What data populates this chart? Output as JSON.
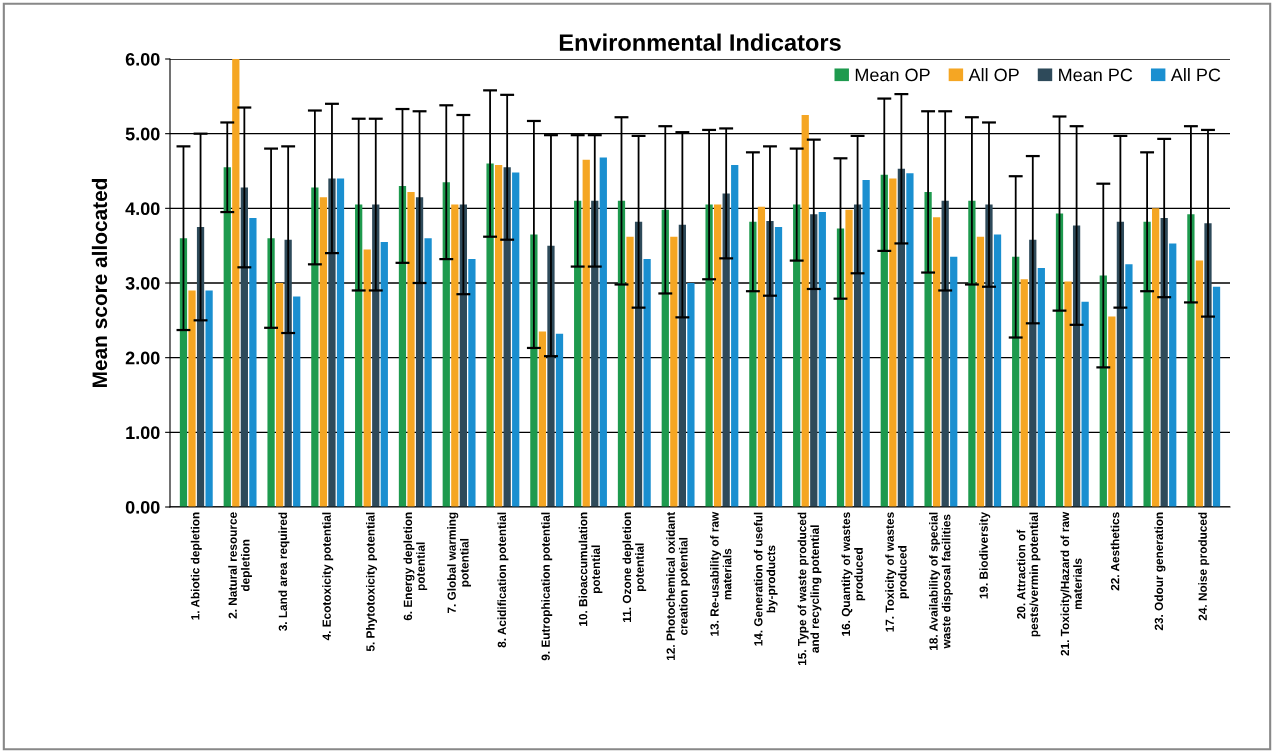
{
  "chart_data": {
    "type": "bar",
    "title": "Environmental Indicators",
    "ylabel": "Mean score allocated",
    "categories": [
      "1. Abiotic depletion",
      "2. Natural resource\ndepletion",
      "3. Land area required",
      "4. Ecotoxicity potential",
      "5. Phytotoxicity potential",
      "6. Energy depletion\npotential",
      "7. Global warming\npotential",
      "8. Acidification potential",
      "9. Eutrophication potential",
      "10. Bioaccumulation\npotential",
      "11. Ozone depletion\npotential",
      "12. Photochemical oxidant\ncreation potential",
      "13. Re-usability of raw\nmaterials",
      "14. Generation of useful\nby-products",
      "15. Type of waste produced\nand recycling potential",
      "16. Quantity of wastes\nproduced",
      "17. Toxicity of wastes\nproduced",
      "18. Availability of special\nwaste disposal facilities",
      "19. Biodiversity",
      "20. Attraction of\npests/vermin potential",
      "21. Toxicity/Hazard of raw\nmaterials",
      "22. Aesthetics",
      "23. Odour generation",
      "24. Noise produced"
    ],
    "series": [
      {
        "name": "Mean OP",
        "color": "#1e9a4e",
        "values": [
          3.6,
          4.55,
          3.6,
          4.28,
          4.05,
          4.3,
          4.35,
          4.6,
          3.65,
          4.1,
          4.1,
          3.98,
          4.05,
          3.82,
          4.05,
          3.73,
          4.45,
          4.22,
          4.1,
          3.35,
          3.93,
          3.1,
          3.82,
          3.92
        ],
        "errors": [
          1.23,
          0.6,
          1.2,
          1.03,
          1.15,
          1.03,
          1.03,
          0.98,
          1.52,
          0.88,
          1.12,
          1.12,
          1.0,
          0.93,
          0.75,
          0.94,
          1.02,
          1.08,
          1.12,
          1.08,
          1.3,
          1.23,
          0.93,
          1.18
        ]
      },
      {
        "name": "All OP",
        "color": "#f5a623",
        "values": [
          2.9,
          6.0,
          3.0,
          4.15,
          3.45,
          4.22,
          4.05,
          4.58,
          2.35,
          4.65,
          3.62,
          3.62,
          4.05,
          4.02,
          5.25,
          3.98,
          4.4,
          3.88,
          3.62,
          3.05,
          3.02,
          2.55,
          4.0,
          3.3
        ]
      },
      {
        "name": "Mean PC",
        "color": "#2e4a5a",
        "values": [
          3.75,
          4.28,
          3.58,
          4.4,
          4.05,
          4.15,
          4.05,
          4.55,
          3.5,
          4.1,
          3.82,
          3.78,
          4.2,
          3.83,
          3.92,
          4.05,
          4.53,
          4.1,
          4.05,
          3.58,
          3.77,
          3.82,
          3.87,
          3.8
        ],
        "errors": [
          1.25,
          1.07,
          1.25,
          1.0,
          1.15,
          1.15,
          1.2,
          0.97,
          1.48,
          0.88,
          1.15,
          1.24,
          0.87,
          1.0,
          1.0,
          0.92,
          1.0,
          1.2,
          1.1,
          1.12,
          1.33,
          1.15,
          1.06,
          1.25
        ]
      },
      {
        "name": "All PC",
        "color": "#1a8fd0",
        "values": [
          2.9,
          3.87,
          2.82,
          4.4,
          3.55,
          3.6,
          3.32,
          4.48,
          2.32,
          4.68,
          3.32,
          3.0,
          4.58,
          3.75,
          3.95,
          4.38,
          4.47,
          3.35,
          3.65,
          3.2,
          2.75,
          3.25,
          3.53,
          2.95
        ]
      }
    ],
    "ylim": [
      0,
      6
    ],
    "yticks": [
      {
        "value": 0,
        "label": "0.00"
      },
      {
        "value": 1,
        "label": "1.00"
      },
      {
        "value": 2,
        "label": "2.00"
      },
      {
        "value": 3,
        "label": "3.00"
      },
      {
        "value": 4,
        "label": "4.00"
      },
      {
        "value": 5,
        "label": "5.00"
      },
      {
        "value": 6,
        "label": "6.00"
      }
    ],
    "grid": "y",
    "legend": "top right"
  }
}
